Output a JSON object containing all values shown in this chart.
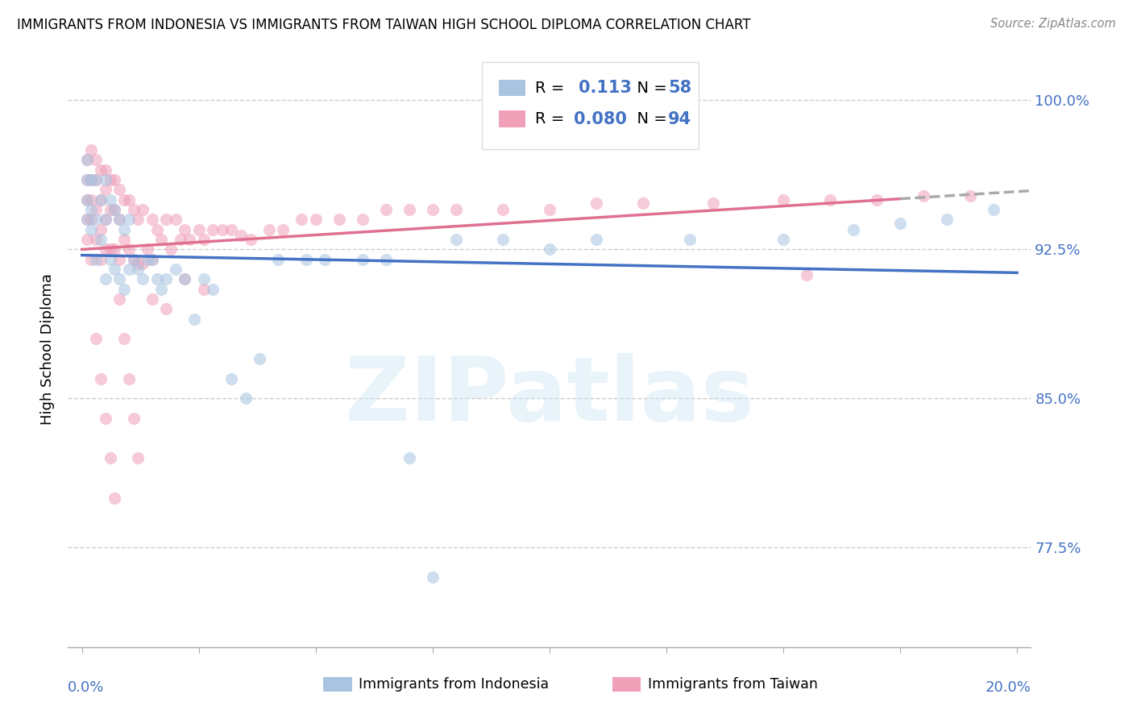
{
  "title": "IMMIGRANTS FROM INDONESIA VS IMMIGRANTS FROM TAIWAN HIGH SCHOOL DIPLOMA CORRELATION CHART",
  "source": "Source: ZipAtlas.com",
  "ylabel": "High School Diploma",
  "watermark": "ZIPatlas",
  "yticks": [
    0.775,
    0.85,
    0.925,
    1.0
  ],
  "ytick_labels": [
    "77.5%",
    "85.0%",
    "92.5%",
    "100.0%"
  ],
  "xlim": [
    0.0,
    0.2
  ],
  "ylim": [
    0.725,
    1.025
  ],
  "r_indonesia": 0.113,
  "r_taiwan": 0.08,
  "n_indonesia": 58,
  "n_taiwan": 94,
  "color_indonesia": "#a8c4e0",
  "color_taiwan": "#f0a0b8",
  "line_color_indonesia": "#4472c4",
  "line_color_taiwan": "#e07090",
  "scatter_alpha": 0.55,
  "scatter_size": 120,
  "indonesia_x": [
    0.001,
    0.001,
    0.001,
    0.001,
    0.002,
    0.002,
    0.002,
    0.003,
    0.003,
    0.003,
    0.004,
    0.004,
    0.005,
    0.005,
    0.005,
    0.006,
    0.006,
    0.007,
    0.007,
    0.008,
    0.008,
    0.009,
    0.009,
    0.01,
    0.01,
    0.011,
    0.012,
    0.013,
    0.014,
    0.015,
    0.016,
    0.017,
    0.018,
    0.02,
    0.022,
    0.024,
    0.026,
    0.028,
    0.032,
    0.035,
    0.038,
    0.042,
    0.048,
    0.052,
    0.06,
    0.065,
    0.07,
    0.075,
    0.08,
    0.09,
    0.1,
    0.11,
    0.13,
    0.15,
    0.165,
    0.175,
    0.185,
    0.195
  ],
  "indonesia_y": [
    0.97,
    0.96,
    0.95,
    0.94,
    0.96,
    0.945,
    0.935,
    0.96,
    0.94,
    0.92,
    0.95,
    0.93,
    0.96,
    0.94,
    0.91,
    0.95,
    0.92,
    0.945,
    0.915,
    0.94,
    0.91,
    0.935,
    0.905,
    0.94,
    0.915,
    0.92,
    0.915,
    0.91,
    0.92,
    0.92,
    0.91,
    0.905,
    0.91,
    0.915,
    0.91,
    0.89,
    0.91,
    0.905,
    0.86,
    0.85,
    0.87,
    0.92,
    0.92,
    0.92,
    0.92,
    0.92,
    0.82,
    0.76,
    0.93,
    0.93,
    0.925,
    0.93,
    0.93,
    0.93,
    0.935,
    0.938,
    0.94,
    0.945
  ],
  "taiwan_x": [
    0.001,
    0.001,
    0.001,
    0.001,
    0.001,
    0.002,
    0.002,
    0.002,
    0.002,
    0.002,
    0.003,
    0.003,
    0.003,
    0.003,
    0.004,
    0.004,
    0.004,
    0.004,
    0.005,
    0.005,
    0.005,
    0.005,
    0.006,
    0.006,
    0.006,
    0.007,
    0.007,
    0.007,
    0.008,
    0.008,
    0.008,
    0.009,
    0.009,
    0.01,
    0.01,
    0.011,
    0.011,
    0.012,
    0.012,
    0.013,
    0.013,
    0.014,
    0.015,
    0.015,
    0.016,
    0.017,
    0.018,
    0.019,
    0.02,
    0.021,
    0.022,
    0.023,
    0.025,
    0.026,
    0.028,
    0.03,
    0.032,
    0.034,
    0.036,
    0.04,
    0.043,
    0.047,
    0.05,
    0.055,
    0.06,
    0.065,
    0.07,
    0.075,
    0.08,
    0.09,
    0.1,
    0.11,
    0.12,
    0.135,
    0.15,
    0.16,
    0.17,
    0.18,
    0.19,
    0.155,
    0.003,
    0.004,
    0.005,
    0.006,
    0.007,
    0.008,
    0.009,
    0.01,
    0.011,
    0.012,
    0.015,
    0.018,
    0.022,
    0.026
  ],
  "taiwan_y": [
    0.97,
    0.96,
    0.95,
    0.94,
    0.93,
    0.975,
    0.96,
    0.95,
    0.94,
    0.92,
    0.97,
    0.96,
    0.945,
    0.93,
    0.965,
    0.95,
    0.935,
    0.92,
    0.965,
    0.955,
    0.94,
    0.925,
    0.96,
    0.945,
    0.925,
    0.96,
    0.945,
    0.925,
    0.955,
    0.94,
    0.92,
    0.95,
    0.93,
    0.95,
    0.925,
    0.945,
    0.92,
    0.94,
    0.918,
    0.945,
    0.918,
    0.925,
    0.94,
    0.92,
    0.935,
    0.93,
    0.94,
    0.925,
    0.94,
    0.93,
    0.935,
    0.93,
    0.935,
    0.93,
    0.935,
    0.935,
    0.935,
    0.932,
    0.93,
    0.935,
    0.935,
    0.94,
    0.94,
    0.94,
    0.94,
    0.945,
    0.945,
    0.945,
    0.945,
    0.945,
    0.945,
    0.948,
    0.948,
    0.948,
    0.95,
    0.95,
    0.95,
    0.952,
    0.952,
    0.912,
    0.88,
    0.86,
    0.84,
    0.82,
    0.8,
    0.9,
    0.88,
    0.86,
    0.84,
    0.82,
    0.9,
    0.895,
    0.91,
    0.905
  ]
}
